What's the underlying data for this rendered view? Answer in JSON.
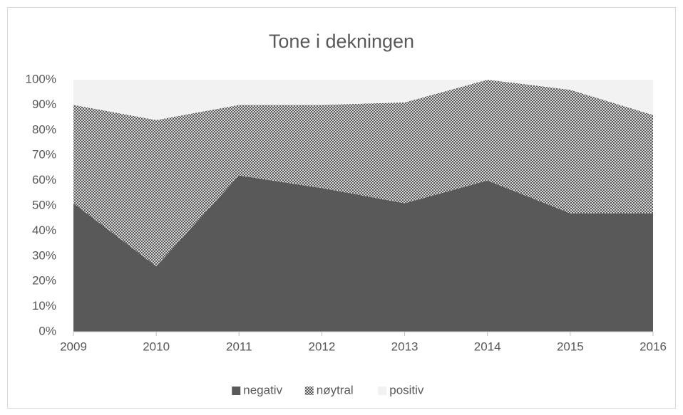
{
  "chart_data": {
    "type": "stacked-area",
    "title": "Tone i dekningen",
    "categories": [
      "2009",
      "2010",
      "2011",
      "2012",
      "2013",
      "2014",
      "2015",
      "2016"
    ],
    "series": [
      {
        "name": "negativ",
        "color": "#595959",
        "values": [
          51,
          26,
          62,
          57,
          51,
          60,
          47,
          47
        ]
      },
      {
        "name": "nøytral",
        "color": "#7f7f7f",
        "pattern": "checkered",
        "values": [
          39,
          58,
          28,
          33,
          40,
          40,
          49,
          39
        ]
      },
      {
        "name": "positiv",
        "color": "#f2f2f2",
        "values": [
          10,
          16,
          10,
          10,
          9,
          0,
          4,
          14
        ]
      }
    ],
    "ylim": [
      0,
      100
    ],
    "yticks": [
      {
        "value": 0,
        "label": "0%"
      },
      {
        "value": 10,
        "label": "10%"
      },
      {
        "value": 20,
        "label": "20%"
      },
      {
        "value": 30,
        "label": "30%"
      },
      {
        "value": 40,
        "label": "40%"
      },
      {
        "value": 50,
        "label": "50%"
      },
      {
        "value": 60,
        "label": "60%"
      },
      {
        "value": 70,
        "label": "70%"
      },
      {
        "value": 80,
        "label": "80%"
      },
      {
        "value": 90,
        "label": "90%"
      },
      {
        "value": 100,
        "label": "100%"
      }
    ],
    "grid": false,
    "legend": "bottom"
  }
}
